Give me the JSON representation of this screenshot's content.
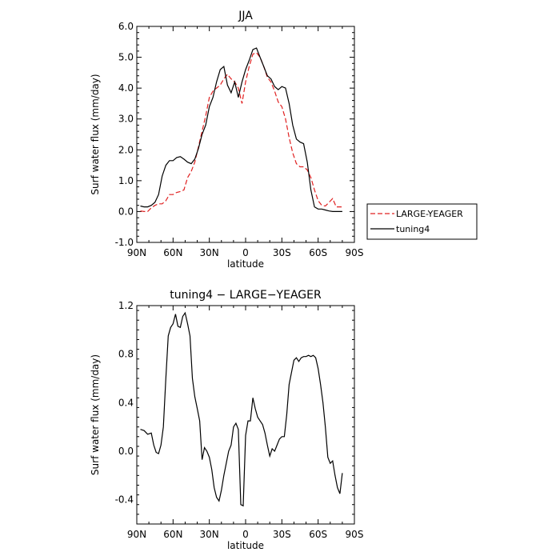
{
  "chart_data": [
    {
      "type": "line",
      "title": "JJA",
      "xlabel": "latitude",
      "ylabel": "Surf water flux (mm/day)",
      "xlim": [
        -90,
        90
      ],
      "ylim": [
        -1.0,
        6.0
      ],
      "xticks": [
        -90,
        -60,
        -30,
        0,
        30,
        60,
        90
      ],
      "xtick_labels": [
        "90N",
        "60N",
        "30N",
        "0",
        "30S",
        "60S",
        "90S"
      ],
      "yticks": [
        -1,
        0,
        1,
        2,
        3,
        4,
        5,
        6
      ],
      "ytick_labels": [
        "-1.0",
        "0.0",
        "1.0",
        "2.0",
        "3.0",
        "4.0",
        "5.0",
        "6.0"
      ],
      "legend_position": "right",
      "series": [
        {
          "name": "LARGE-YEAGER",
          "color": "#e02020",
          "dash": true,
          "x": [
            -87,
            -84,
            -81,
            -78,
            -75,
            -72,
            -69,
            -66,
            -63,
            -60,
            -57,
            -54,
            -51,
            -48,
            -45,
            -42,
            -39,
            -36,
            -33,
            -30,
            -27,
            -24,
            -21,
            -18,
            -15,
            -12,
            -9,
            -6,
            -3,
            0,
            3,
            6,
            9,
            12,
            15,
            18,
            21,
            24,
            27,
            30,
            33,
            36,
            39,
            42,
            45,
            48,
            51,
            54,
            57,
            60,
            63,
            66,
            69,
            72,
            75,
            78,
            80
          ],
          "y": [
            0.02,
            0.0,
            0.0,
            0.12,
            0.2,
            0.25,
            0.25,
            0.35,
            0.55,
            0.55,
            0.62,
            0.65,
            0.7,
            1.1,
            1.3,
            1.6,
            2.1,
            2.6,
            3.1,
            3.7,
            3.9,
            4.0,
            4.1,
            4.3,
            4.45,
            4.3,
            4.2,
            4.0,
            3.5,
            4.2,
            4.7,
            5.1,
            5.15,
            5.0,
            4.7,
            4.35,
            4.2,
            3.9,
            3.55,
            3.4,
            3.0,
            2.4,
            1.9,
            1.55,
            1.45,
            1.45,
            1.35,
            1.1,
            0.7,
            0.35,
            0.2,
            0.18,
            0.3,
            0.42,
            0.15,
            0.15,
            0.15
          ]
        },
        {
          "name": "tuning4",
          "color": "#000000",
          "dash": false,
          "x": [
            -87,
            -84,
            -81,
            -78,
            -75,
            -72,
            -69,
            -66,
            -63,
            -60,
            -57,
            -54,
            -51,
            -48,
            -45,
            -42,
            -39,
            -36,
            -33,
            -30,
            -27,
            -24,
            -21,
            -18,
            -15,
            -12,
            -9,
            -6,
            -3,
            0,
            3,
            6,
            9,
            12,
            15,
            18,
            21,
            24,
            27,
            30,
            33,
            36,
            39,
            42,
            45,
            48,
            51,
            54,
            57,
            60,
            63,
            66,
            69,
            72,
            75,
            78,
            80
          ],
          "y": [
            0.18,
            0.15,
            0.15,
            0.2,
            0.3,
            0.55,
            1.15,
            1.5,
            1.65,
            1.65,
            1.75,
            1.78,
            1.7,
            1.6,
            1.55,
            1.7,
            2.05,
            2.5,
            2.8,
            3.4,
            3.7,
            4.2,
            4.6,
            4.7,
            4.1,
            3.85,
            4.2,
            3.7,
            4.2,
            4.6,
            4.9,
            5.25,
            5.3,
            5.0,
            4.7,
            4.4,
            4.3,
            4.05,
            3.95,
            4.05,
            4.0,
            3.5,
            2.8,
            2.35,
            2.25,
            2.2,
            1.6,
            0.7,
            0.15,
            0.08,
            0.08,
            0.05,
            0.02,
            0.0,
            0.0,
            0.0,
            0.0
          ]
        }
      ]
    },
    {
      "type": "line",
      "title": "tuning4 − LARGE−YEAGER",
      "xlabel": "latitude",
      "ylabel": "Surf water flux (mm/day)",
      "xlim": [
        -90,
        90
      ],
      "ylim": [
        -0.6,
        1.2
      ],
      "xticks": [
        -90,
        -60,
        -30,
        0,
        30,
        60,
        90
      ],
      "xtick_labels": [
        "90N",
        "60N",
        "30N",
        "0",
        "30S",
        "60S",
        "90S"
      ],
      "yticks": [
        -0.4,
        0.0,
        0.4,
        0.8,
        1.2
      ],
      "ytick_labels": [
        "-0.4",
        "0.0",
        "0.4",
        "0.8",
        "1.2"
      ],
      "series": [
        {
          "color": "#000000",
          "x": [
            -87,
            -84,
            -81,
            -78,
            -76,
            -74,
            -72,
            -70,
            -68,
            -66,
            -64,
            -62,
            -60,
            -58,
            -56,
            -54,
            -52,
            -50,
            -48,
            -46,
            -44,
            -42,
            -40,
            -38,
            -36,
            -34,
            -32,
            -30,
            -28,
            -26,
            -24,
            -22,
            -20,
            -18,
            -16,
            -14,
            -12,
            -10,
            -8,
            -6,
            -4,
            -2,
            0,
            2,
            4,
            6,
            8,
            10,
            12,
            14,
            16,
            18,
            20,
            22,
            24,
            26,
            28,
            30,
            32,
            34,
            36,
            38,
            40,
            42,
            44,
            46,
            48,
            50,
            52,
            54,
            56,
            58,
            60,
            62,
            64,
            66,
            68,
            70,
            72,
            74,
            76,
            78,
            80
          ],
          "y": [
            0.18,
            0.17,
            0.14,
            0.15,
            0.05,
            -0.01,
            -0.02,
            0.05,
            0.2,
            0.6,
            0.95,
            1.02,
            1.05,
            1.13,
            1.03,
            1.02,
            1.11,
            1.14,
            1.05,
            0.95,
            0.6,
            0.45,
            0.35,
            0.25,
            -0.07,
            0.03,
            0.0,
            -0.05,
            -0.15,
            -0.3,
            -0.38,
            -0.41,
            -0.32,
            -0.2,
            -0.1,
            0.0,
            0.05,
            0.2,
            0.23,
            0.18,
            -0.44,
            -0.45,
            0.13,
            0.25,
            0.25,
            0.44,
            0.35,
            0.28,
            0.25,
            0.22,
            0.15,
            0.05,
            -0.04,
            0.02,
            0.0,
            0.05,
            0.1,
            0.12,
            0.12,
            0.3,
            0.55,
            0.65,
            0.75,
            0.77,
            0.74,
            0.77,
            0.78,
            0.78,
            0.79,
            0.78,
            0.79,
            0.77,
            0.68,
            0.55,
            0.4,
            0.2,
            -0.05,
            -0.1,
            -0.08,
            -0.2,
            -0.3,
            -0.35,
            -0.18
          ]
        }
      ]
    }
  ]
}
